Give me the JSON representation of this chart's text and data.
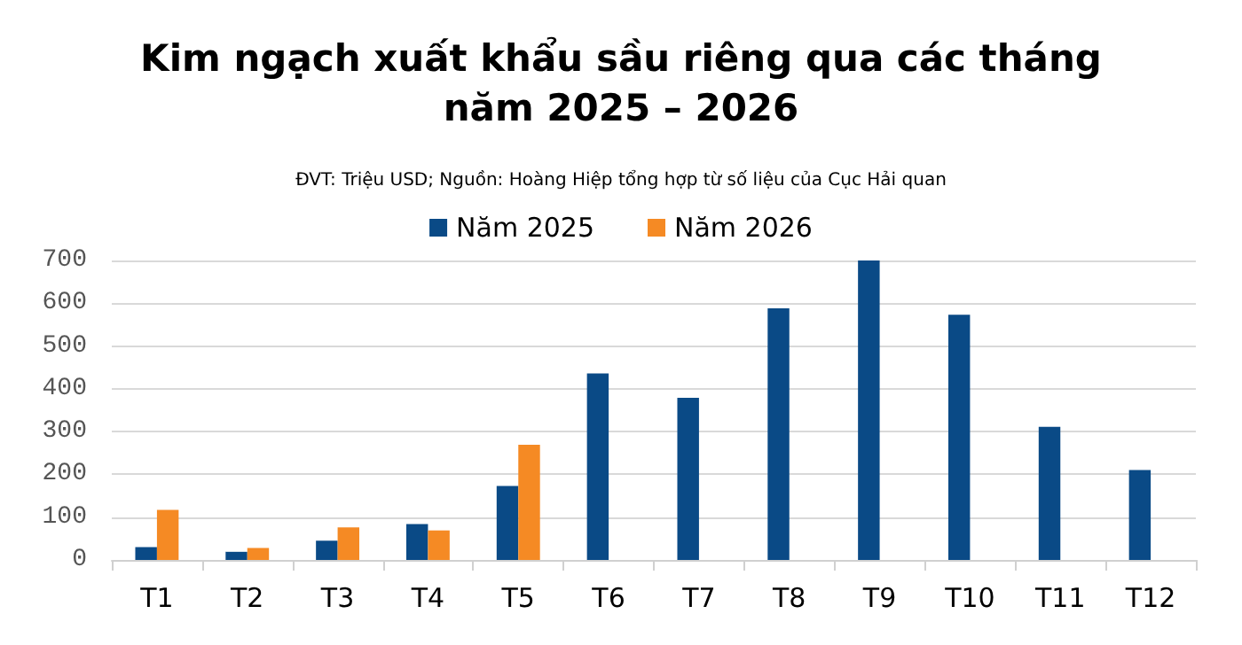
{
  "chart_data": {
    "type": "bar",
    "title": "Kim ngạch xuất khẩu sầu riêng qua các tháng\nnăm 2025 – 2026",
    "subtitle": "ĐVT: Triệu USD; Nguồn: Hoàng Hiệp tổng hợp từ số liệu của Cục Hải quan",
    "categories": [
      "T1",
      "T2",
      "T3",
      "T4",
      "T5",
      "T6",
      "T7",
      "T8",
      "T9",
      "T10",
      "T11",
      "T12"
    ],
    "series": [
      {
        "name": "Năm 2025",
        "color": "#0a4a86",
        "values": [
          30,
          19,
          45,
          84,
          173,
          436,
          379,
          588,
          700,
          573,
          311,
          210
        ]
      },
      {
        "name": "Năm 2026",
        "color": "#f58a24",
        "values": [
          117,
          28,
          76,
          69,
          269,
          null,
          null,
          null,
          null,
          null,
          null,
          null
        ]
      }
    ],
    "ylim": [
      0,
      700
    ],
    "yticks": [
      0,
      100,
      200,
      300,
      400,
      500,
      600,
      700
    ],
    "grid": "y",
    "legend": "top"
  }
}
